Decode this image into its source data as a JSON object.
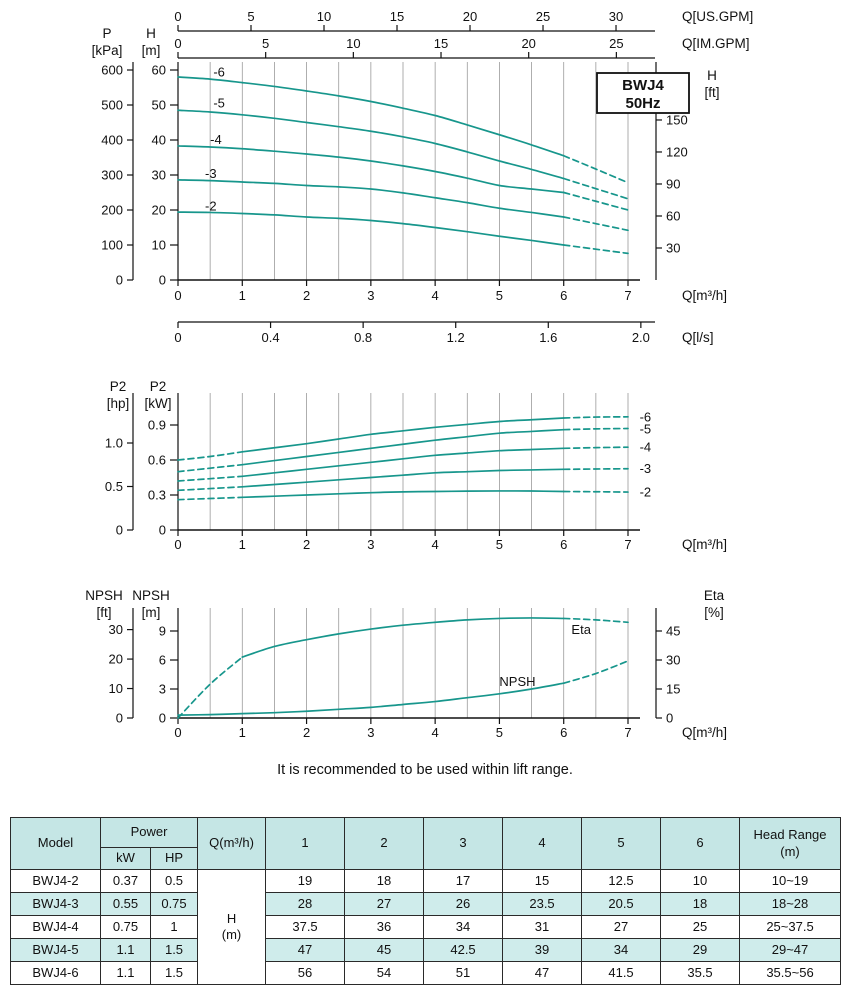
{
  "meta": {
    "note": "It is recommended to be used within lift range."
  },
  "badge": {
    "model": "BWJ4",
    "freq": "50Hz"
  },
  "style": {
    "curve_color": "#17968c",
    "table_header_bg": "#c5e6e5",
    "table_alt_bg": "#cfeceb"
  },
  "chart_data": [
    {
      "type": "line",
      "name": "head-vs-flow",
      "q_step": 0.5,
      "x_axis": {
        "unit": "Q[m³/h]",
        "ticks": [
          "0",
          "1",
          "2",
          "3",
          "4",
          "5",
          "6",
          "7"
        ],
        "range": [
          0,
          7
        ]
      },
      "x_axis_ls": {
        "unit": "Q[l/s]",
        "ticks": [
          "0",
          "0.4",
          "0.8",
          "1.2",
          "1.6",
          "2.0"
        ],
        "to_m3h": 3.6
      },
      "x_axis_usgpm": {
        "unit": "Q[US.GPM]",
        "ticks": [
          "0",
          "5",
          "10",
          "15",
          "20",
          "25",
          "30"
        ],
        "to_m3h": 0.22712
      },
      "x_axis_imgpm": {
        "unit": "Q[IM.GPM]",
        "ticks": [
          "0",
          "5",
          "10",
          "15",
          "20",
          "25"
        ],
        "to_m3h": 0.27276
      },
      "y_axis_m": {
        "label": [
          "H",
          "[m]"
        ],
        "ticks": [
          "0",
          "10",
          "20",
          "30",
          "40",
          "50",
          "60"
        ],
        "range": [
          0,
          60
        ]
      },
      "y_axis_kpa": {
        "label": [
          "P",
          "[kPa]"
        ],
        "ticks": [
          "0",
          "100",
          "200",
          "300",
          "400",
          "500",
          "600"
        ],
        "to_m": 0.1
      },
      "y_axis_ft": {
        "label": [
          "H",
          "[ft]"
        ],
        "ticks": [
          "30",
          "60",
          "90",
          "120",
          "150"
        ],
        "to_m": 0.3048
      },
      "series": [
        {
          "name": "-6",
          "solid_from": 0,
          "solid_to": 6,
          "label_at": [
            0.55,
            58.2
          ],
          "values": [
            58,
            57.4,
            56.4,
            55.3,
            54,
            52.6,
            51,
            49.1,
            47,
            44.3,
            41.5,
            38.6,
            35.5,
            31.7,
            27.8
          ]
        },
        {
          "name": "-5",
          "solid_from": 0,
          "solid_to": 6,
          "label_at": [
            0.55,
            49.3
          ],
          "values": [
            48.5,
            48,
            47.2,
            46.2,
            45,
            43.8,
            42.5,
            40.9,
            39,
            36.6,
            34,
            31.6,
            29,
            26.1,
            23.2
          ]
        },
        {
          "name": "-4",
          "solid_from": 0,
          "solid_to": 6,
          "label_at": [
            0.5,
            38.9
          ],
          "values": [
            38.3,
            38,
            37.5,
            36.8,
            36,
            35.1,
            34,
            32.6,
            31,
            29.1,
            27,
            26,
            25,
            22.5,
            20
          ]
        },
        {
          "name": "-3",
          "solid_from": 0,
          "solid_to": 6,
          "label_at": [
            0.42,
            29.1
          ],
          "values": [
            28.6,
            28.4,
            28,
            27.6,
            27,
            26.6,
            26,
            24.9,
            23.5,
            22.1,
            20.5,
            19.3,
            18,
            16.1,
            14.2
          ]
        },
        {
          "name": "-2",
          "solid_from": 0,
          "solid_to": 6,
          "label_at": [
            0.42,
            19.9
          ],
          "values": [
            19.4,
            19.3,
            19,
            18.6,
            18,
            17.6,
            17,
            16.1,
            15,
            13.8,
            12.5,
            11.3,
            10,
            8.8,
            7.6
          ]
        }
      ]
    },
    {
      "type": "line",
      "name": "power-vs-flow",
      "q_step": 0.5,
      "x_axis": {
        "unit": "Q[m³/h]",
        "ticks": [
          "0",
          "1",
          "2",
          "3",
          "4",
          "5",
          "6",
          "7"
        ],
        "range": [
          0,
          7
        ]
      },
      "y_axis_kw": {
        "label": [
          "P2",
          "[kW]"
        ],
        "ticks": [
          "0",
          "0.3",
          "0.6",
          "0.9"
        ],
        "range": [
          0,
          1.17
        ]
      },
      "y_axis_hp": {
        "label": [
          "P2",
          "[hp]"
        ],
        "ticks": [
          "0",
          "0.5",
          "1.0"
        ],
        "to_kw": 0.7457
      },
      "series": [
        {
          "name": "-6",
          "solid_from": 1,
          "solid_to": 6,
          "label_at": [
            7.18,
            0.93
          ],
          "values": [
            0.6,
            0.63,
            0.67,
            0.705,
            0.74,
            0.78,
            0.82,
            0.85,
            0.88,
            0.905,
            0.93,
            0.945,
            0.96,
            0.968,
            0.97
          ]
        },
        {
          "name": "-5",
          "solid_from": 1,
          "solid_to": 6,
          "label_at": [
            7.18,
            0.827
          ],
          "values": [
            0.5,
            0.53,
            0.56,
            0.595,
            0.63,
            0.665,
            0.7,
            0.735,
            0.77,
            0.8,
            0.83,
            0.845,
            0.86,
            0.867,
            0.87
          ]
        },
        {
          "name": "-4",
          "solid_from": 1,
          "solid_to": 6,
          "label_at": [
            7.18,
            0.672
          ],
          "values": [
            0.42,
            0.44,
            0.46,
            0.49,
            0.52,
            0.55,
            0.58,
            0.61,
            0.64,
            0.66,
            0.68,
            0.69,
            0.7,
            0.706,
            0.71
          ]
        },
        {
          "name": "-3",
          "solid_from": 1,
          "solid_to": 6,
          "label_at": [
            7.18,
            0.487
          ],
          "values": [
            0.34,
            0.355,
            0.37,
            0.39,
            0.41,
            0.43,
            0.45,
            0.47,
            0.49,
            0.5,
            0.51,
            0.515,
            0.52,
            0.523,
            0.525
          ]
        },
        {
          "name": "-2",
          "solid_from": 1,
          "solid_to": 6,
          "label_at": [
            7.18,
            0.286
          ],
          "values": [
            0.26,
            0.27,
            0.28,
            0.29,
            0.3,
            0.31,
            0.32,
            0.327,
            0.33,
            0.333,
            0.335,
            0.334,
            0.33,
            0.328,
            0.325
          ]
        }
      ]
    },
    {
      "type": "line",
      "name": "npsh-eta-vs-flow",
      "q_step": 0.5,
      "x_axis": {
        "unit": "Q[m³/h]",
        "ticks": [
          "0",
          "1",
          "2",
          "3",
          "4",
          "5",
          "6",
          "7"
        ],
        "range": [
          0,
          7
        ]
      },
      "y_axis_m": {
        "label": [
          "NPSH",
          "[m]"
        ],
        "ticks": [
          "0",
          "3",
          "6",
          "9"
        ],
        "range": [
          0,
          11.4
        ]
      },
      "y_axis_ft": {
        "label": [
          "NPSH",
          "[ft]"
        ],
        "ticks": [
          "0",
          "10",
          "20",
          "30"
        ],
        "to_m": 0.3048
      },
      "y_axis_eta": {
        "label": [
          "Eta",
          "[%]"
        ],
        "ticks": [
          "0",
          "15",
          "30",
          "45"
        ],
        "to_m": 0.2
      },
      "series": [
        {
          "name": "Eta",
          "solid_from": 1,
          "solid_to": 6,
          "label_at": [
            6.12,
            8.7
          ],
          "values": [
            0,
            3.5,
            6.3,
            7.4,
            8.1,
            8.7,
            9.2,
            9.6,
            9.9,
            10.15,
            10.3,
            10.35,
            10.3,
            10.15,
            9.9
          ]
        },
        {
          "name": "NPSH",
          "solid_from": 0,
          "solid_to": 6,
          "label_at": [
            5.0,
            3.3
          ],
          "values": [
            0.3,
            0.35,
            0.45,
            0.55,
            0.7,
            0.9,
            1.1,
            1.4,
            1.7,
            2.1,
            2.5,
            3.0,
            3.6,
            4.6,
            5.9
          ]
        }
      ]
    }
  ],
  "table": {
    "header": {
      "model": "Model",
      "power": "Power",
      "kw": "kW",
      "hp": "HP",
      "q": "Q(m³/h)",
      "flow_cols": [
        "1",
        "2",
        "3",
        "4",
        "5",
        "6"
      ],
      "head_range": [
        "Head Range",
        "(m)"
      ]
    },
    "h_unit": [
      "H",
      "(m)"
    ],
    "rows": [
      {
        "model": "BWJ4-2",
        "kw": "0.37",
        "hp": "0.5",
        "values": [
          "19",
          "18",
          "17",
          "15",
          "12.5",
          "10"
        ],
        "range": "10~19"
      },
      {
        "model": "BWJ4-3",
        "kw": "0.55",
        "hp": "0.75",
        "values": [
          "28",
          "27",
          "26",
          "23.5",
          "20.5",
          "18"
        ],
        "range": "18~28"
      },
      {
        "model": "BWJ4-4",
        "kw": "0.75",
        "hp": "1",
        "values": [
          "37.5",
          "36",
          "34",
          "31",
          "27",
          "25"
        ],
        "range": "25~37.5"
      },
      {
        "model": "BWJ4-5",
        "kw": "1.1",
        "hp": "1.5",
        "values": [
          "47",
          "45",
          "42.5",
          "39",
          "34",
          "29"
        ],
        "range": "29~47"
      },
      {
        "model": "BWJ4-6",
        "kw": "1.1",
        "hp": "1.5",
        "values": [
          "56",
          "54",
          "51",
          "47",
          "41.5",
          "35.5"
        ],
        "range": "35.5~56"
      }
    ]
  }
}
